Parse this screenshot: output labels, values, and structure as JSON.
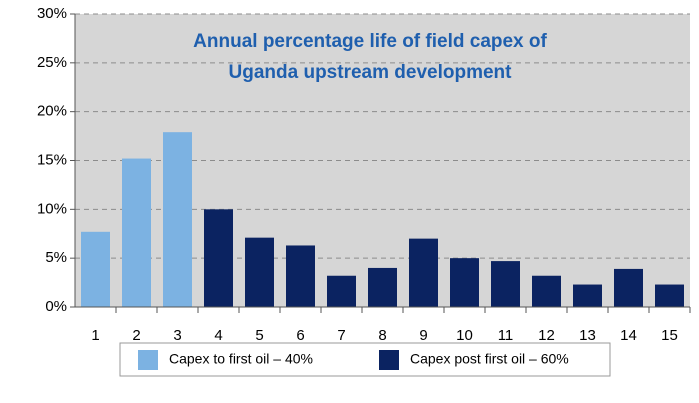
{
  "chart_data": {
    "type": "bar",
    "title": [
      "Annual percentage life of field capex of",
      "Uganda upstream development"
    ],
    "categories": [
      "1",
      "2",
      "3",
      "4",
      "5",
      "6",
      "7",
      "8",
      "9",
      "10",
      "11",
      "12",
      "13",
      "14",
      "15"
    ],
    "series": [
      {
        "name": "Capex to first oil – 40%",
        "color": "#7cb2e2",
        "values": [
          7.7,
          15.2,
          17.9,
          null,
          null,
          null,
          null,
          null,
          null,
          null,
          null,
          null,
          null,
          null,
          null
        ]
      },
      {
        "name": "Capex post first oil – 60%",
        "color": "#0b2361",
        "values": [
          null,
          null,
          null,
          10.0,
          7.1,
          6.3,
          3.2,
          4.0,
          7.0,
          5.0,
          4.7,
          3.2,
          2.3,
          3.9,
          2.3
        ]
      }
    ],
    "ylim": [
      0,
      30
    ],
    "yticks": [
      {
        "value": 0,
        "label": "0%"
      },
      {
        "value": 5,
        "label": "5%"
      },
      {
        "value": 10,
        "label": "10%"
      },
      {
        "value": 15,
        "label": "15%"
      },
      {
        "value": 20,
        "label": "20%"
      },
      {
        "value": 25,
        "label": "25%"
      },
      {
        "value": 30,
        "label": "30%"
      }
    ],
    "grid": true
  }
}
